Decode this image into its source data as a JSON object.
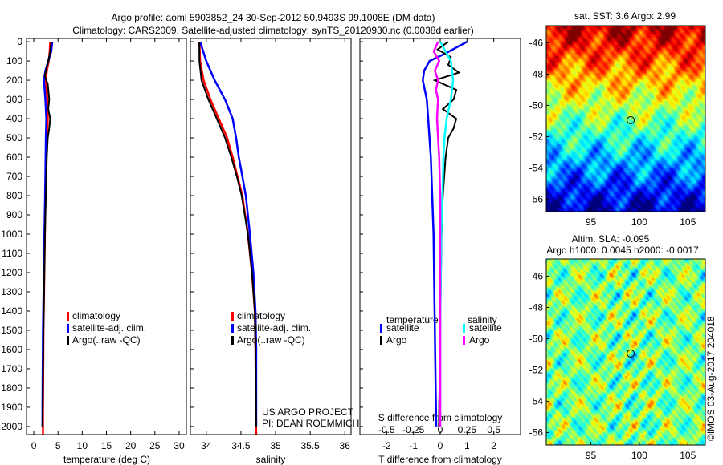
{
  "title_line1": "Argo profile: aoml 5903852_24 30-Sep-2012 50.9493S 99.1008E (DM data)",
  "title_line2": "Climatology: CARS2009. Satellite-adjusted climatology: synTS_20120930.nc (0.0038d earlier)",
  "project_line1": "US ARGO PROJECT",
  "project_line2": "PI: DEAN ROEMMICH",
  "imos_stamp": "©IMOS 03-Aug-2017 204018",
  "colors": {
    "climatology": "#ff0000",
    "satellite": "#0000ff",
    "argo": "#000000",
    "sal_satellite": "#00ffff",
    "sal_argo": "#ff00ff"
  },
  "chart_data": [
    {
      "type": "line",
      "name": "temperature",
      "xlabel": "temperature (deg C)",
      "ylabel": "",
      "xlim": [
        -1.5,
        31.5
      ],
      "ylim": [
        -17,
        2042
      ],
      "xticks": [
        0,
        5,
        10,
        15,
        20,
        25,
        30
      ],
      "yticks": [
        0,
        100,
        200,
        300,
        400,
        500,
        600,
        700,
        800,
        900,
        1000,
        1100,
        1200,
        1300,
        1400,
        1500,
        1600,
        1700,
        1800,
        1900,
        2000
      ],
      "legend": [
        "climatology",
        "satellite-adj. clim.",
        "Argo(..raw -QC)"
      ],
      "series": [
        {
          "name": "climatology",
          "color": "#ff0000",
          "depth": [
            0,
            50,
            100,
            150,
            200,
            300,
            400,
            500,
            700,
            1000,
            1500,
            1900,
            2040
          ],
          "values": [
            3.4,
            3.3,
            3.1,
            2.7,
            2.5,
            2.8,
            2.9,
            2.7,
            2.5,
            2.3,
            2.0,
            1.9,
            1.9
          ]
        },
        {
          "name": "satellite-adj. clim.",
          "color": "#0000ff",
          "depth": [
            0,
            50,
            100,
            150,
            200,
            300,
            400,
            500,
            700,
            1000,
            1500,
            1900,
            2000
          ],
          "values": [
            3.8,
            3.6,
            3.0,
            2.4,
            2.1,
            2.4,
            2.6,
            2.5,
            2.4,
            2.2,
            1.9,
            1.8,
            1.8
          ]
        },
        {
          "name": "Argo(..raw -QC)",
          "color": "#000000",
          "depth": [
            0,
            50,
            100,
            150,
            180,
            220,
            300,
            350,
            400,
            450,
            500,
            600,
            800,
            1000,
            1500,
            2000
          ],
          "values": [
            3.6,
            3.4,
            3.0,
            2.5,
            2.3,
            2.9,
            3.2,
            3.0,
            3.4,
            3.2,
            2.9,
            2.7,
            2.5,
            2.3,
            2.0,
            1.8
          ]
        }
      ]
    },
    {
      "type": "line",
      "name": "salinity",
      "xlabel": "salinity",
      "ylabel": "",
      "xlim": [
        33.77,
        36.09
      ],
      "ylim": [
        -17,
        2042
      ],
      "xticks": [
        34,
        34.5,
        35,
        35.5,
        36
      ],
      "legend": [
        "climatology",
        "satellite-adj. clim.",
        "Argo(..raw -QC)"
      ],
      "series": [
        {
          "name": "climatology",
          "color": "#ff0000",
          "depth": [
            0,
            100,
            200,
            300,
            400,
            500,
            600,
            700,
            800,
            1000,
            1200,
            1400,
            1600,
            2040
          ],
          "values": [
            33.9,
            33.91,
            33.96,
            34.06,
            34.18,
            34.3,
            34.38,
            34.45,
            34.52,
            34.6,
            34.66,
            34.7,
            34.71,
            34.72
          ]
        },
        {
          "name": "satellite-adj. clim.",
          "color": "#0000ff",
          "depth": [
            0,
            100,
            200,
            300,
            400,
            500,
            600,
            700,
            800,
            1000,
            1200,
            1400,
            1600,
            2000
          ],
          "values": [
            33.91,
            34.0,
            34.12,
            34.27,
            34.38,
            34.43,
            34.47,
            34.52,
            34.57,
            34.63,
            34.68,
            34.71,
            34.72,
            34.72
          ]
        },
        {
          "name": "Argo(..raw -QC)",
          "color": "#000000",
          "depth": [
            0,
            100,
            200,
            300,
            400,
            500,
            600,
            700,
            800,
            1000,
            1200,
            1400,
            1600,
            2000
          ],
          "values": [
            33.9,
            33.9,
            33.93,
            34.03,
            34.15,
            34.27,
            34.36,
            34.44,
            34.51,
            34.6,
            34.66,
            34.7,
            34.71,
            34.72
          ]
        }
      ]
    },
    {
      "type": "line",
      "name": "difference",
      "xlabel": "T difference from climatology",
      "x2label": "S difference from climatology",
      "xlim": [
        -3,
        3
      ],
      "x2lim": [
        -0.75,
        0.75
      ],
      "ylim": [
        -17,
        2042
      ],
      "xticks": [
        -2,
        -1,
        0,
        1,
        2
      ],
      "x2ticks": [
        -0.5,
        -0.25,
        0,
        0.25,
        0.5
      ],
      "legend_temperature_title": "temperature",
      "legend_salinity_title": "salinity",
      "legend": [
        "satellite",
        "Argo",
        "satellite",
        "Argo"
      ],
      "series": [
        {
          "name": "temperature satellite",
          "color": "#0000ff",
          "axis": "T",
          "depth": [
            0,
            30,
            60,
            100,
            150,
            200,
            300,
            400,
            600,
            800,
            1000,
            1500,
            2000
          ],
          "values": [
            1.0,
            0.6,
            0.2,
            -0.4,
            -0.6,
            -0.65,
            -0.5,
            -0.45,
            -0.35,
            -0.3,
            -0.25,
            -0.2,
            -0.15
          ]
        },
        {
          "name": "temperature Argo",
          "color": "#000000",
          "axis": "T",
          "depth": [
            0,
            40,
            80,
            120,
            160,
            200,
            250,
            300,
            350,
            400,
            450,
            500,
            600,
            800,
            1000,
            1500,
            2000
          ],
          "values": [
            0.3,
            -0.1,
            0.4,
            0.3,
            0.7,
            -0.2,
            0.6,
            0.5,
            0.1,
            0.6,
            0.5,
            0.3,
            0.2,
            0.1,
            0.05,
            0.0,
            -0.05
          ]
        },
        {
          "name": "salinity satellite",
          "color": "#00ffff",
          "axis": "S",
          "depth": [
            0,
            50,
            100,
            200,
            300,
            400,
            500,
            600,
            800,
            1000,
            1500,
            2000
          ],
          "values": [
            0.0,
            0.05,
            0.1,
            0.12,
            0.1,
            0.06,
            0.04,
            0.03,
            0.02,
            0.01,
            0.0,
            0.0
          ]
        },
        {
          "name": "salinity Argo",
          "color": "#ff00ff",
          "axis": "S",
          "depth": [
            0,
            50,
            100,
            150,
            200,
            250,
            300,
            400,
            500,
            600,
            800,
            1000,
            1500,
            2000
          ],
          "values": [
            -0.02,
            -0.06,
            -0.01,
            -0.05,
            -0.02,
            -0.04,
            -0.02,
            -0.03,
            -0.02,
            -0.01,
            0.0,
            0.0,
            0.0,
            0.0
          ]
        }
      ]
    },
    {
      "type": "heatmap",
      "name": "sst-map",
      "title": "sat. SST: 3.6 Argo: 2.99",
      "xlim": [
        90.4,
        106.8
      ],
      "ylim": [
        -56.8,
        -44.9
      ],
      "xticks": [
        95,
        100,
        105
      ],
      "yticks": [
        -46,
        -48,
        -50,
        -52,
        -54,
        -56
      ],
      "marker": [
        99.1,
        -50.95
      ]
    },
    {
      "type": "heatmap",
      "name": "sla-map",
      "title_line1": "Altim. SLA: -0.095",
      "title_line2": "Argo h1000: 0.0045 h2000: -0.0017",
      "xlim": [
        90.4,
        106.8
      ],
      "ylim": [
        -56.8,
        -44.9
      ],
      "xticks": [
        95,
        100,
        105
      ],
      "yticks": [
        -46,
        -48,
        -50,
        -52,
        -54,
        -56
      ],
      "marker": [
        99.1,
        -50.95
      ]
    }
  ]
}
